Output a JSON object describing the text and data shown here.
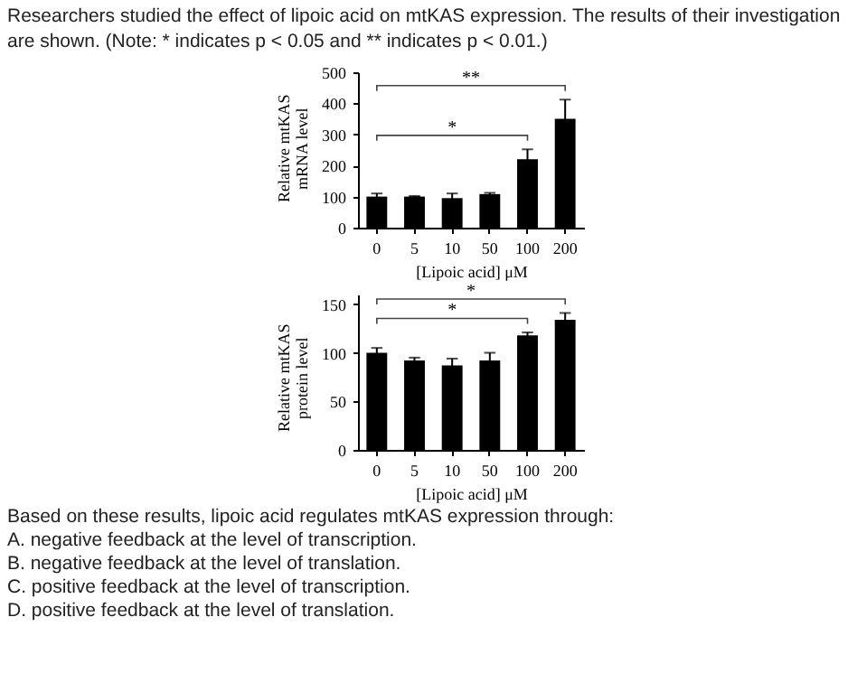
{
  "chart_data": [
    {
      "type": "bar",
      "title": "Researchers studied the effect of lipoic acid on mtKAS expression. The results of their investigation are shown. (Note: * indicates p < 0.05 and ** indicates p < 0.01.)",
      "xlabel": "[Lipoic acid] μM",
      "ylabel": "Relative mtKAS mRNA level",
      "categories": [
        "0",
        "5",
        "10",
        "50",
        "100",
        "200"
      ],
      "series": [
        {
          "color": "#000000",
          "values": [
            100,
            100,
            95,
            108,
            220,
            350
          ],
          "errors": [
            10,
            2,
            15,
            4,
            32,
            62
          ]
        }
      ],
      "ylim": [
        0,
        500
      ],
      "yticks": [
        0,
        100,
        200,
        300,
        400,
        500
      ],
      "annotations": [
        "*",
        "**"
      ]
    },
    {
      "type": "bar",
      "xlabel": "[Lipoic acid] μM",
      "ylabel": "Relative mtKAS protein level",
      "categories": [
        "0",
        "5",
        "10",
        "50",
        "100",
        "200"
      ],
      "series": [
        {
          "color": "#000000",
          "values": [
            100,
            92,
            87,
            92,
            118,
            134
          ],
          "errors": [
            5,
            3,
            7,
            8,
            3,
            7
          ]
        }
      ],
      "ylim": [
        0,
        160
      ],
      "yticks": [
        0,
        50,
        100,
        150
      ],
      "annotations": [
        "*",
        "*",
        "Based on these results, lipoic acid regulates mtKAS expression through:",
        "A. negative feedback at the level of transcription.",
        "B. negative feedback at the level of translation.",
        "C. positive feedback at the level of transcription.",
        "D. positive feedback at the level of translation."
      ]
    }
  ]
}
